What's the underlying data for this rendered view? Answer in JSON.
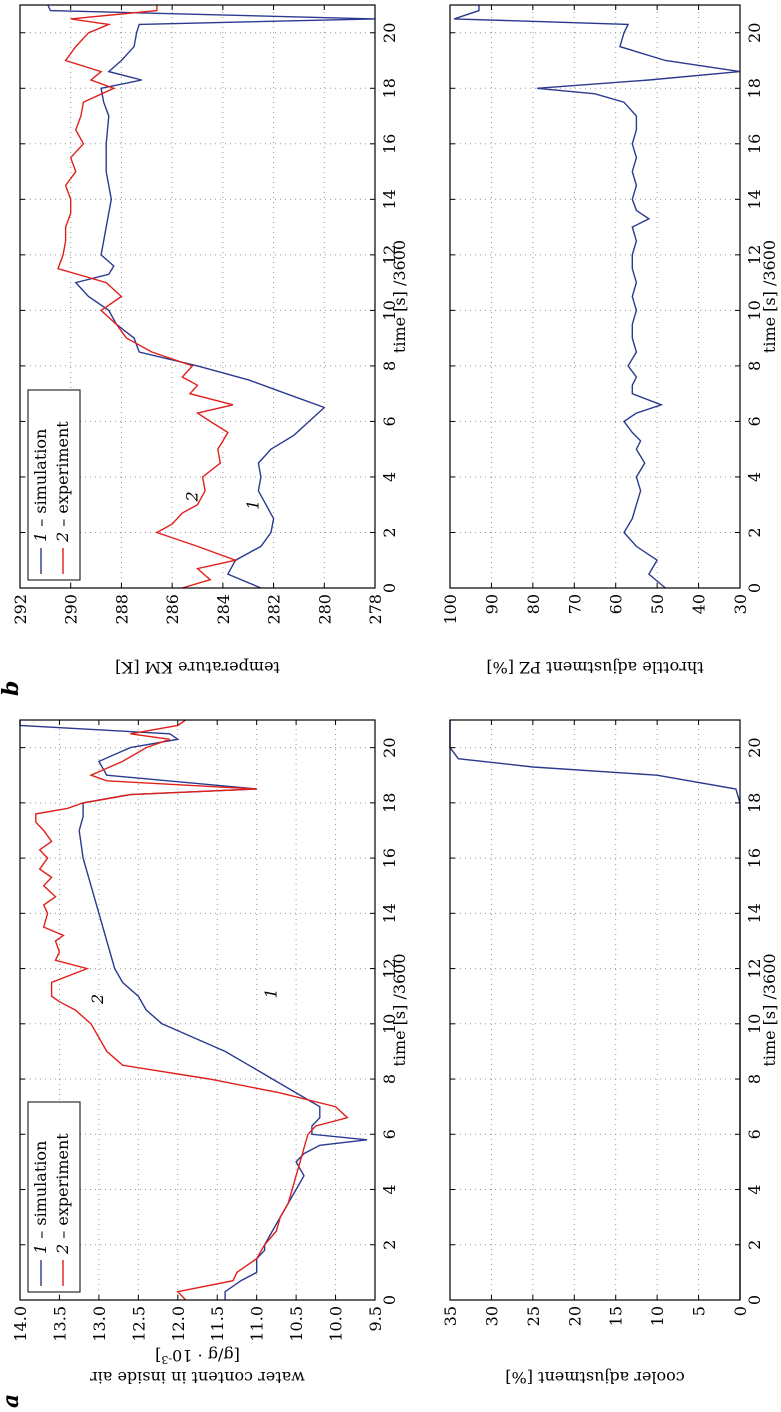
{
  "chart_data": [
    {
      "panel": "a",
      "type": "line",
      "xlabel": "time [s] /3600",
      "ylabel": "water content in inside air",
      "ylabel2": "[g/g · 10",
      "ylabel2_sup": "-3",
      "ylabel2_end": "]",
      "xlim": [
        0,
        21
      ],
      "ylim": [
        9.5,
        14.0
      ],
      "xticks": [
        "0",
        "2",
        "4",
        "6",
        "8",
        "10",
        "12",
        "14",
        "16",
        "18",
        "20"
      ],
      "yticks": [
        "9.5",
        "10.0",
        "10.5",
        "11.0",
        "11.5",
        "12.0",
        "12.5",
        "13.0",
        "13.5",
        "14.0"
      ],
      "grid": true,
      "legend": [
        {
          "num": "1",
          "text": " – simulation",
          "color": "#2b3a8f"
        },
        {
          "num": "2",
          "text": " – experiment",
          "color": "#e0201b"
        }
      ],
      "curve_labels": [
        {
          "text": "1",
          "x": 11.1,
          "y": 10.75
        },
        {
          "text": "2",
          "x": 10.9,
          "y": 12.95
        }
      ],
      "series": [
        {
          "id": "1",
          "color": "#2b3a8f",
          "x": [
            0,
            0.3,
            0.7,
            1.0,
            1.5,
            1.8,
            2.0,
            2.5,
            3.0,
            3.5,
            4.0,
            4.5,
            5.0,
            5.3,
            5.6,
            5.8,
            6.0,
            6.3,
            6.6,
            7.0,
            7.5,
            8.0,
            8.5,
            9.0,
            9.5,
            10.0,
            10.5,
            11.0,
            11.5,
            12.0,
            13.0,
            14.0,
            15.0,
            16.0,
            17.0,
            17.5,
            18.0,
            18.3,
            18.5,
            19.0,
            19.5,
            20.0,
            20.3,
            20.5,
            20.8,
            21.0
          ],
          "y": [
            11.4,
            11.4,
            11.2,
            11.0,
            11.0,
            10.9,
            10.9,
            10.8,
            10.7,
            10.6,
            10.5,
            10.4,
            10.5,
            10.4,
            10.2,
            9.6,
            10.3,
            10.3,
            10.2,
            10.2,
            10.5,
            10.8,
            11.1,
            11.4,
            11.8,
            12.2,
            12.4,
            12.5,
            12.7,
            12.8,
            12.9,
            13.0,
            13.1,
            13.2,
            13.25,
            13.2,
            13.2,
            12.6,
            11.0,
            12.9,
            13.0,
            12.6,
            12.0,
            12.1,
            14.0,
            14.0
          ]
        },
        {
          "id": "2",
          "color": "#e0201b",
          "x": [
            0,
            0.3,
            0.7,
            1.0,
            1.5,
            2.0,
            2.5,
            3.0,
            3.5,
            4.0,
            4.5,
            5.0,
            5.5,
            6.0,
            6.3,
            6.6,
            7.0,
            7.5,
            8.0,
            8.5,
            9.0,
            9.5,
            10.0,
            10.5,
            10.8,
            11.0,
            11.5,
            12.0,
            12.3,
            12.6,
            13.0,
            13.2,
            13.5,
            14.0,
            14.3,
            14.6,
            15.0,
            15.3,
            15.6,
            16.0,
            16.3,
            16.6,
            17.0,
            17.3,
            17.6,
            17.8,
            18.0,
            18.3,
            18.5,
            18.8,
            19.0,
            19.5,
            20.0,
            20.3,
            20.5,
            20.8,
            21.0
          ],
          "y": [
            11.9,
            12.0,
            11.3,
            11.25,
            11.0,
            10.9,
            10.75,
            10.7,
            10.6,
            10.55,
            10.5,
            10.45,
            10.4,
            10.35,
            10.25,
            9.85,
            10.0,
            10.7,
            11.6,
            12.7,
            12.9,
            13.0,
            13.1,
            13.3,
            13.5,
            13.6,
            13.6,
            13.15,
            13.55,
            13.5,
            13.55,
            13.45,
            13.7,
            13.65,
            13.7,
            13.55,
            13.7,
            13.6,
            13.75,
            13.65,
            13.75,
            13.6,
            13.7,
            13.8,
            13.8,
            13.4,
            13.2,
            12.6,
            11.0,
            12.9,
            13.1,
            12.7,
            12.4,
            12.1,
            12.6,
            12.0,
            11.9
          ]
        }
      ]
    },
    {
      "panel": "b",
      "type": "line",
      "xlabel": "time [s] /3600",
      "ylabel": "temperature KM [K]",
      "xlim": [
        0,
        21
      ],
      "ylim": [
        278,
        292
      ],
      "xticks": [
        "0",
        "2",
        "4",
        "6",
        "8",
        "10",
        "12",
        "14",
        "16",
        "18",
        "20"
      ],
      "yticks": [
        "278",
        "280",
        "282",
        "284",
        "286",
        "288",
        "290",
        "292"
      ],
      "grid": true,
      "legend": [
        {
          "num": "1",
          "text": " – simulation",
          "color": "#2b3a8f"
        },
        {
          "num": "2",
          "text": " – experiment",
          "color": "#e0201b"
        }
      ],
      "curve_labels": [
        {
          "text": "1",
          "x": 3.0,
          "y": 282.6
        },
        {
          "text": "2",
          "x": 3.3,
          "y": 285.0
        }
      ],
      "series": [
        {
          "id": "1",
          "color": "#2b3a8f",
          "x": [
            0,
            0.5,
            1.0,
            1.5,
            2.0,
            2.5,
            3.0,
            3.5,
            4.0,
            4.5,
            5.0,
            5.5,
            6.0,
            6.5,
            7.0,
            7.5,
            8.0,
            8.5,
            9.0,
            9.5,
            10.0,
            10.5,
            11.0,
            11.3,
            11.6,
            12.0,
            13.0,
            14.0,
            15.0,
            16.0,
            17.0,
            17.5,
            18.0,
            18.3,
            18.6,
            19.0,
            19.5,
            20.0,
            20.3,
            20.5,
            20.8,
            21.0
          ],
          "y": [
            282.5,
            283.8,
            283.5,
            282.5,
            282.1,
            282.0,
            282.3,
            282.6,
            282.5,
            282.6,
            282.1,
            281.2,
            280.6,
            280.0,
            281.5,
            283.0,
            285.0,
            287.3,
            287.5,
            288.2,
            288.5,
            289.3,
            289.8,
            288.5,
            288.3,
            288.8,
            288.6,
            288.4,
            288.6,
            288.6,
            288.5,
            288.7,
            288.8,
            287.2,
            288.5,
            288.0,
            287.5,
            287.4,
            287.3,
            278.0,
            290.8,
            290.9
          ]
        },
        {
          "id": "2",
          "color": "#e0201b",
          "x": [
            0,
            0.3,
            0.7,
            1.0,
            1.5,
            2.0,
            2.3,
            2.7,
            3.0,
            3.5,
            4.0,
            4.5,
            5.0,
            5.3,
            5.6,
            6.0,
            6.3,
            6.6,
            7.0,
            7.3,
            7.6,
            8.0,
            8.5,
            9.0,
            9.5,
            10.0,
            10.5,
            11.0,
            11.5,
            12.0,
            12.5,
            13.0,
            13.5,
            14.0,
            14.5,
            15.0,
            15.5,
            16.0,
            16.5,
            17.0,
            17.5,
            18.0,
            18.3,
            18.6,
            19.0,
            19.5,
            20.0,
            20.3,
            20.5,
            20.8,
            21.0
          ],
          "y": [
            285.6,
            284.5,
            285.0,
            283.5,
            285.0,
            286.6,
            286.0,
            285.6,
            285.0,
            284.7,
            284.8,
            284.1,
            284.2,
            284.0,
            283.8,
            284.5,
            285.0,
            283.6,
            285.3,
            285.0,
            285.6,
            285.2,
            286.8,
            287.8,
            288.2,
            288.8,
            288.0,
            288.6,
            290.5,
            290.3,
            290.2,
            290.2,
            290.0,
            290.0,
            290.2,
            289.8,
            290.0,
            289.5,
            289.8,
            289.6,
            289.5,
            288.3,
            289.2,
            288.8,
            290.2,
            289.8,
            289.3,
            288.5,
            290.0,
            286.6,
            286.6
          ]
        }
      ]
    },
    {
      "panel": "a-lower",
      "type": "line",
      "xlabel": "time [s] /3600",
      "ylabel": "cooler adjustment [%]",
      "xlim": [
        0,
        21
      ],
      "ylim": [
        0,
        35
      ],
      "xticks": [
        "0",
        "2",
        "4",
        "6",
        "8",
        "10",
        "12",
        "14",
        "16",
        "18",
        "20"
      ],
      "yticks": [
        "0",
        "5",
        "10",
        "15",
        "20",
        "25",
        "30",
        "35"
      ],
      "grid": true,
      "series": [
        {
          "id": "1",
          "color": "#2b3a8f",
          "x": [
            0,
            18.0,
            18.5,
            19.0,
            19.3,
            19.6,
            20.0,
            20.5,
            21.0
          ],
          "y": [
            0,
            0,
            0.5,
            10,
            25,
            34,
            35,
            35,
            35
          ]
        }
      ]
    },
    {
      "panel": "b-lower",
      "type": "line",
      "xlabel": "time [s] /3600",
      "ylabel": "throttle adjustment PZ [%]",
      "xlim": [
        0,
        21
      ],
      "ylim": [
        30,
        100
      ],
      "xticks": [
        "0",
        "2",
        "4",
        "6",
        "8",
        "10",
        "12",
        "14",
        "16",
        "18",
        "20"
      ],
      "yticks": [
        "30",
        "40",
        "50",
        "60",
        "70",
        "80",
        "90",
        "100"
      ],
      "grid": true,
      "series": [
        {
          "id": "1",
          "color": "#2b3a8f",
          "x": [
            0,
            0.5,
            1.0,
            1.5,
            2.0,
            2.5,
            3.0,
            3.5,
            4.0,
            4.5,
            5.0,
            5.3,
            5.6,
            6.0,
            6.3,
            6.6,
            7.0,
            7.3,
            7.6,
            8.0,
            8.5,
            9.0,
            9.5,
            10.0,
            10.5,
            11.0,
            11.5,
            12.0,
            12.5,
            13.0,
            13.3,
            13.6,
            14.0,
            14.5,
            15.0,
            15.5,
            16.0,
            16.5,
            17.0,
            17.5,
            17.8,
            18.0,
            18.3,
            18.6,
            19.0,
            19.5,
            20.0,
            20.3,
            20.5,
            20.8,
            21.0
          ],
          "y": [
            48,
            52,
            50,
            55,
            58,
            56,
            55,
            54,
            55,
            53,
            55,
            54,
            56,
            58,
            55,
            49,
            56,
            56,
            55,
            57,
            55,
            56,
            56,
            55,
            56,
            55,
            56,
            56,
            55,
            56,
            52,
            55,
            56,
            55,
            56,
            55,
            56,
            55,
            55,
            58,
            65,
            79,
            52,
            30,
            48,
            59,
            58,
            57,
            99,
            93,
            93
          ]
        }
      ]
    }
  ]
}
